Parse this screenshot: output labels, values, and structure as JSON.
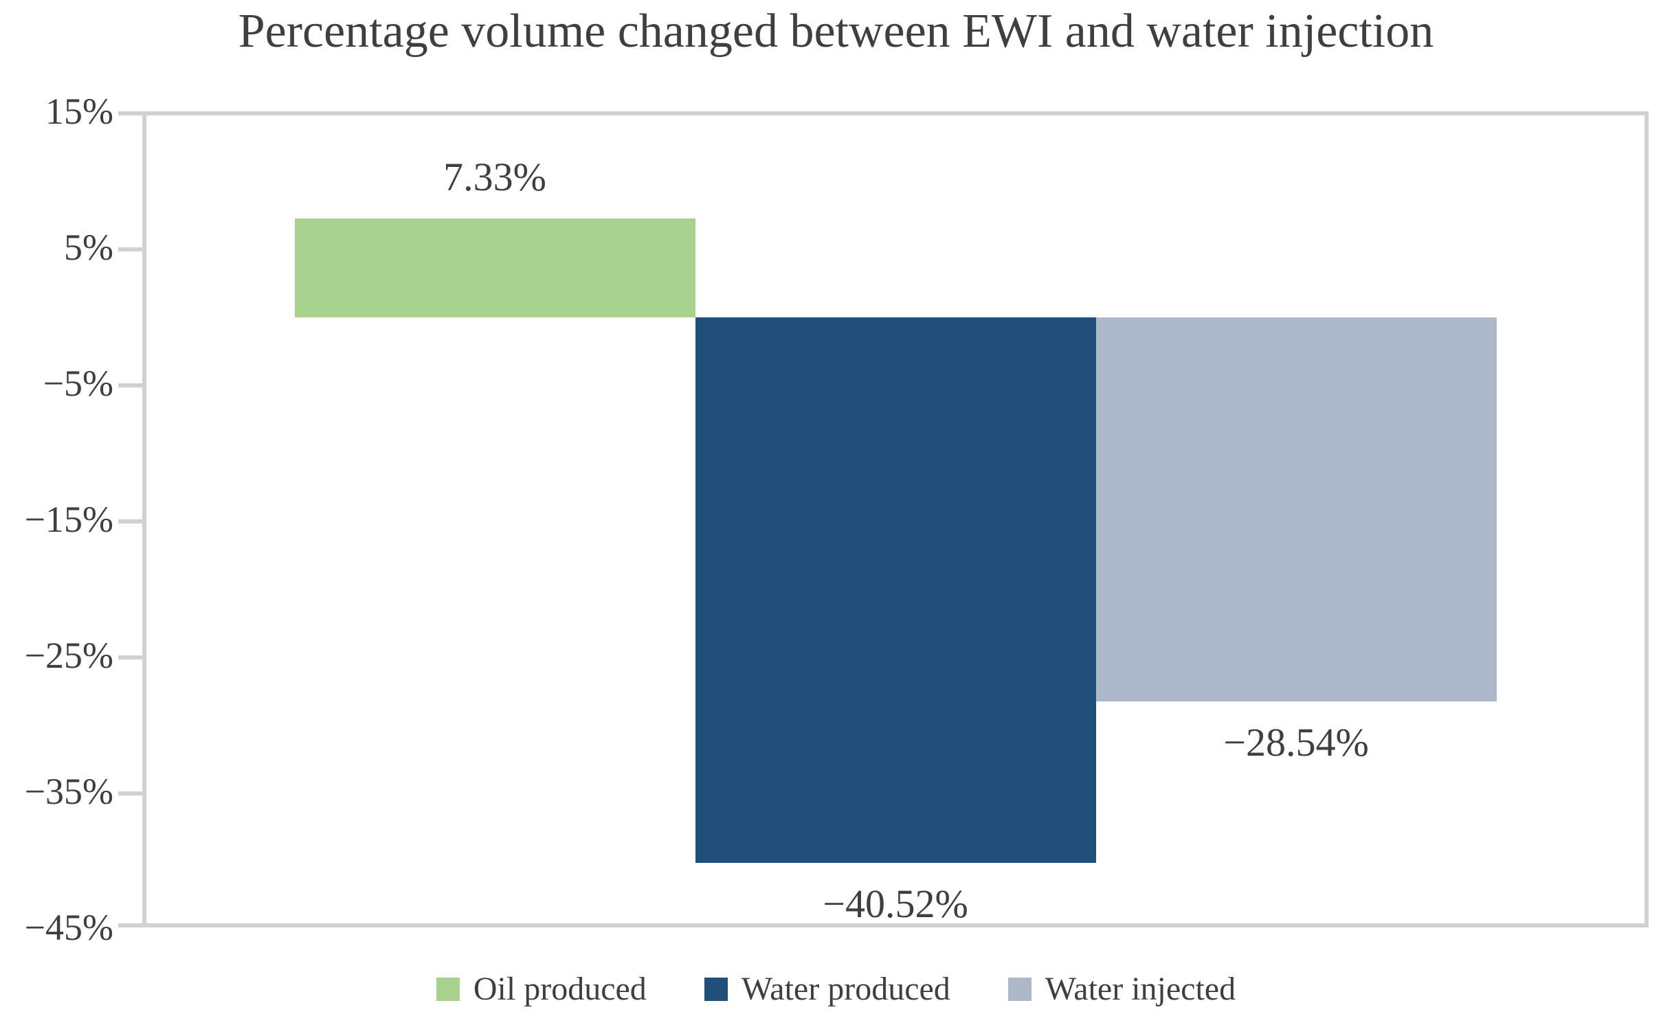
{
  "title": "Percentage volume changed between EWI and water injection",
  "colors": {
    "oil_produced": "#A9D18E",
    "water_produced": "#1F4E79",
    "water_injected": "#ADB9CA",
    "axis_line": "#D1D1D1",
    "text": "#3F3F3F"
  },
  "y_axis": {
    "tick_labels": [
      "15%",
      "5%",
      "−5%",
      "−15%",
      "−25%",
      "−35%",
      "−45%"
    ]
  },
  "chart_data": {
    "type": "bar",
    "title": "Percentage volume changed between EWI and water injection",
    "categories": [
      "Oil produced",
      "Water produced",
      "Water injected"
    ],
    "values": [
      7.33,
      -40.52,
      -28.54
    ],
    "data_labels": [
      "7.33%",
      "−40.52%",
      "−28.54%"
    ],
    "series_colors": [
      "#A9D18E",
      "#1F4E79",
      "#ADB9CA"
    ],
    "xlabel": "",
    "ylabel": "",
    "ylim": [
      -45,
      15
    ],
    "y_ticks": [
      15,
      5,
      -5,
      -15,
      -25,
      -35,
      -45
    ],
    "grid": false,
    "legend_position": "bottom"
  },
  "legend": {
    "items": [
      {
        "label": "Oil produced",
        "color": "#A9D18E"
      },
      {
        "label": "Water produced",
        "color": "#1F4E79"
      },
      {
        "label": "Water injected",
        "color": "#ADB9CA"
      }
    ]
  }
}
